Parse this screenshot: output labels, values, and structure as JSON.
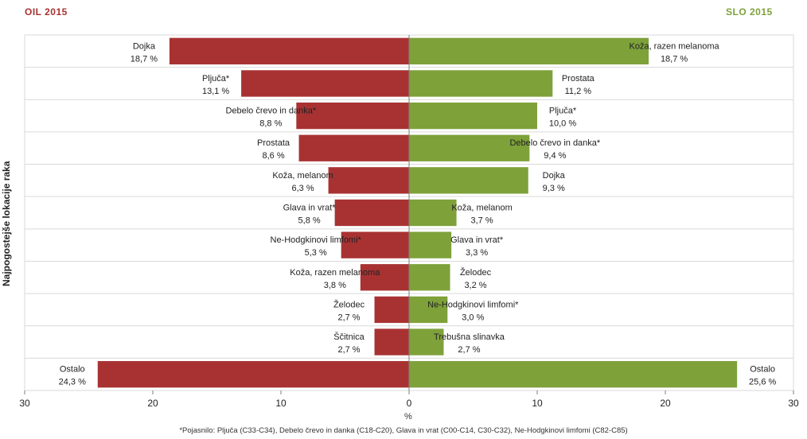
{
  "chart_data": {
    "type": "bar",
    "orientation": "horizontal-diverging",
    "titles": {
      "left": "OIL  2015",
      "right": "SLO  2015"
    },
    "ylabel": "Najpogostejše lokacije raka",
    "xlabel": "%",
    "xlim": [
      -30,
      30
    ],
    "xticks": [
      30,
      20,
      10,
      0,
      10,
      20,
      30
    ],
    "grid": "horizontal-bands",
    "colors": {
      "left": "#a83232",
      "right": "#7ea13a",
      "grid": "#d9d9d9"
    },
    "series": [
      {
        "name": "OIL  2015",
        "categories": [
          "Dojka",
          "Pljuča*",
          "Debelo črevo in  danka*",
          "Prostata",
          "Koža, melanom",
          "Glava in vrat*",
          "Ne-Hodgkinovi limfomi*",
          "Koža, razen melanoma",
          "Želodec",
          "Ščitnica",
          "Ostalo"
        ],
        "values": [
          18.7,
          13.1,
          8.8,
          8.6,
          6.3,
          5.8,
          5.3,
          3.8,
          2.7,
          2.7,
          24.3
        ],
        "value_labels": [
          "18,7 %",
          "13,1 %",
          "8,8 %",
          "8,6 %",
          "6,3 %",
          "5,8 %",
          "5,3 %",
          "3,8 %",
          "2,7 %",
          "2,7 %",
          "24,3 %"
        ]
      },
      {
        "name": "SLO  2015",
        "categories": [
          "Koža, razen melanoma",
          "Prostata",
          "Pljuča*",
          "Debelo črevo in danka*",
          "Dojka",
          "Koža, melanom",
          "Glava in vrat*",
          "Želodec",
          "Ne-Hodgkinovi limfomi*",
          "Trebušna slinavka",
          "Ostalo"
        ],
        "values": [
          18.7,
          11.2,
          10.0,
          9.4,
          9.3,
          3.7,
          3.3,
          3.2,
          3.0,
          2.7,
          25.6
        ],
        "value_labels": [
          "18,7 %",
          "11,2 %",
          "10,0 %",
          "9,4 %",
          "9,3 %",
          "3,7 %",
          "3,3 %",
          "3,2 %",
          "3,0 %",
          "2,7 %",
          "25,6 %"
        ]
      }
    ],
    "footnote": "*Pojasnilo: Pljuča (C33-C34), Debelo črevo in danka (C18-C20), Glava in vrat (C00-C14, C30-C32), Ne-Hodgkinovi limfomi (C82-C85)"
  }
}
